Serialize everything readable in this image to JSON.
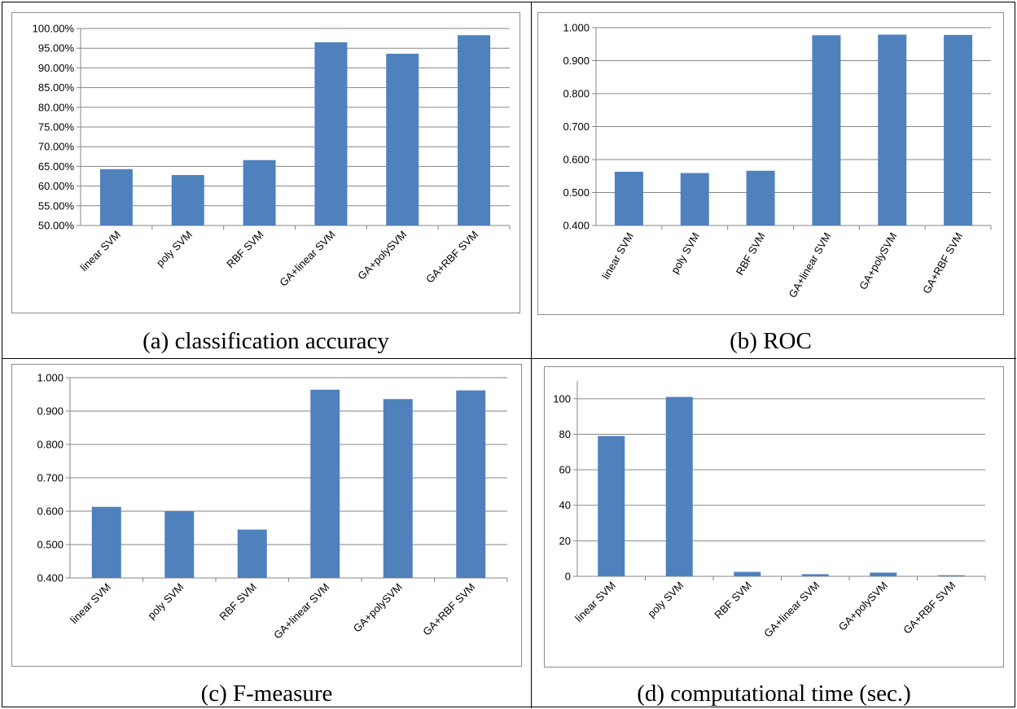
{
  "chart_data": [
    {
      "id": "a",
      "type": "bar",
      "caption": "(a) classification accuracy",
      "categories": [
        "linear SVM",
        "poly SVM",
        "RBF SVM",
        "GA+linear SVM",
        "GA+polySVM",
        "GA+RBF SVM"
      ],
      "values": [
        64.3,
        62.8,
        66.6,
        96.5,
        93.6,
        98.3
      ],
      "ylim": [
        50,
        100
      ],
      "yticks": [
        50,
        55,
        60,
        65,
        70,
        75,
        80,
        85,
        90,
        95,
        100
      ],
      "tick_labels": [
        "50.00%",
        "55.00%",
        "60.00%",
        "65.00%",
        "70.00%",
        "75.00%",
        "80.00%",
        "85.00%",
        "90.00%",
        "95.00%",
        "100.00%"
      ],
      "grid": true,
      "bar_color": "#4f81bd",
      "title": "",
      "xlabel": "",
      "ylabel": ""
    },
    {
      "id": "b",
      "type": "bar",
      "caption": "(b) ROC",
      "categories": [
        "linear SVM",
        "poly SVM",
        "RBF SVM",
        "GA+linear SVM",
        "GA+polySVM",
        "GA+RBF SVM"
      ],
      "values": [
        0.563,
        0.559,
        0.566,
        0.977,
        0.979,
        0.978
      ],
      "ylim": [
        0.4,
        1.0
      ],
      "yticks": [
        0.4,
        0.5,
        0.6,
        0.7,
        0.8,
        0.9,
        1.0
      ],
      "tick_labels": [
        "0.400",
        "0.500",
        "0.600",
        "0.700",
        "0.800",
        "0.900",
        "1.000"
      ],
      "grid": true,
      "bar_color": "#4f81bd",
      "title": "",
      "xlabel": "",
      "ylabel": ""
    },
    {
      "id": "c",
      "type": "bar",
      "caption": "(c) F-measure",
      "categories": [
        "linear SVM",
        "poly SVM",
        "RBF SVM",
        "GA+linear SVM",
        "GA+polySVM",
        "GA+RBF SVM"
      ],
      "values": [
        0.613,
        0.6,
        0.545,
        0.964,
        0.936,
        0.962
      ],
      "ylim": [
        0.4,
        1.0
      ],
      "yticks": [
        0.4,
        0.5,
        0.6,
        0.7,
        0.8,
        0.9,
        1.0
      ],
      "tick_labels": [
        "0.400",
        "0.500",
        "0.600",
        "0.700",
        "0.800",
        "0.900",
        "1.000"
      ],
      "grid": true,
      "bar_color": "#4f81bd",
      "title": "",
      "xlabel": "",
      "ylabel": ""
    },
    {
      "id": "d",
      "type": "bar",
      "caption": "(d) computational time (sec.)",
      "categories": [
        "linear SVM",
        "poly SVM",
        "RBF SVM",
        "GA+linear SVM",
        "GA+polySVM",
        "GA+RBF SVM"
      ],
      "values": [
        79,
        101,
        2.5,
        1.2,
        2.1,
        0.6
      ],
      "ylim": [
        0,
        110
      ],
      "yticks": [
        0,
        20,
        40,
        60,
        80,
        100
      ],
      "tick_labels": [
        "0",
        "20",
        "40",
        "60",
        "80",
        "100"
      ],
      "grid": true,
      "bar_color": "#4f81bd",
      "title": "",
      "xlabel": "",
      "ylabel": ""
    }
  ]
}
